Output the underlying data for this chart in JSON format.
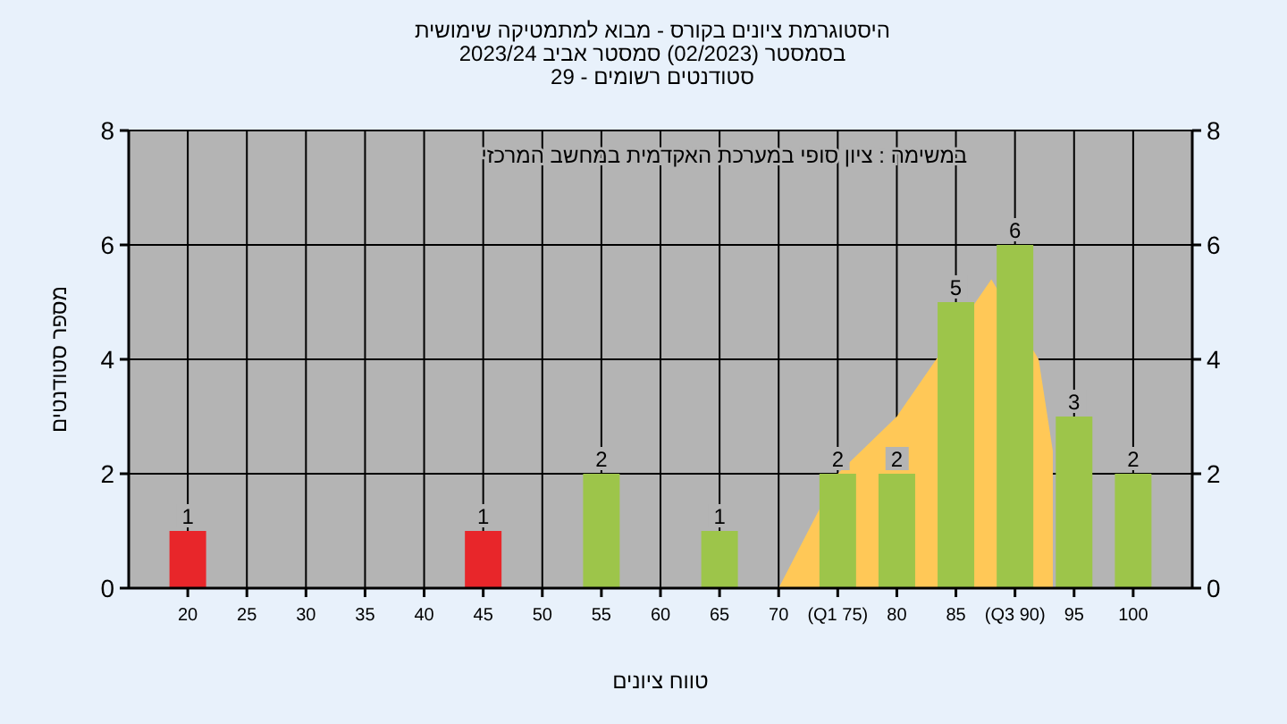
{
  "chart_data": {
    "type": "bar",
    "title": "היסטוגרמת ציונים בקורס - מבוא למתמטיקה שימושית",
    "subtitle": "בסמסטר (02/2023) סמסטר אביב 2023/24",
    "annotations": [
      "סטודנטים רשומים - 29",
      "במשימה : ציון סופי במערכת האקדמית במחשב המרכזי"
    ],
    "xlabel": "טווח ציונים",
    "ylabel": "מספר סטודנטים",
    "series": [
      {
        "type": "area",
        "color": "#ffc857",
        "x": [
          70,
          75,
          80,
          88,
          92,
          93.2
        ],
        "values": [
          0,
          2,
          3,
          5.4,
          4,
          2.4
        ]
      },
      {
        "x": [
          20,
          45,
          55,
          65,
          75,
          80,
          85,
          90,
          95,
          100
        ],
        "values": [
          1,
          1,
          2,
          1,
          2,
          2,
          5,
          6,
          3,
          2
        ],
        "value_labels": [
          "1",
          "1",
          "2",
          "1",
          "2",
          "2",
          "5",
          "6",
          "3",
          "2"
        ],
        "colors": [
          "#e8262a",
          "#e8262a",
          "#9dc54a",
          "#9dc54a",
          "#9dc54a",
          "#9dc54a",
          "#9dc54a",
          "#9dc54a",
          "#9dc54a",
          "#9dc54a"
        ]
      }
    ],
    "xlim": [
      15,
      105
    ],
    "xticks": [
      20,
      25,
      30,
      35,
      40,
      45,
      50,
      55,
      60,
      65,
      70,
      {
        "value": 75,
        "label": "(Q1 75)"
      },
      80,
      85,
      {
        "value": 90,
        "label": "(Q3 90)"
      },
      95,
      100
    ],
    "ylim": [
      0,
      8
    ],
    "yticks": [
      0,
      2,
      4,
      6,
      8
    ],
    "y2lim": [
      0,
      8
    ],
    "y2ticks": [
      0,
      2,
      4,
      6,
      8
    ],
    "grid": true
  }
}
